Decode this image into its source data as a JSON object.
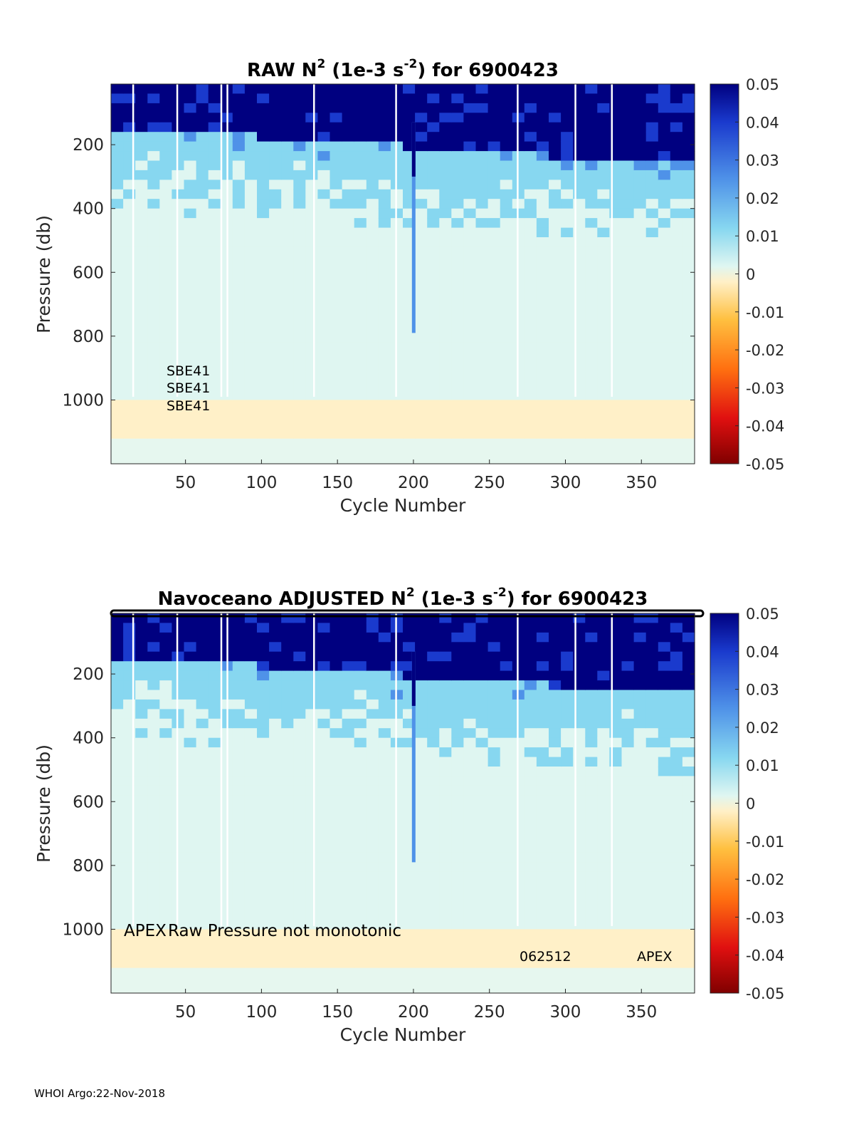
{
  "footer": "WHOI Argo:22-Nov-2018",
  "colorbar": {
    "ticks": [
      "0.05",
      "0.04",
      "0.03",
      "0.02",
      "0.01",
      "0",
      "-0.01",
      "-0.02",
      "-0.03",
      "-0.04",
      "-0.05"
    ],
    "values": [
      0.05,
      0.04,
      0.03,
      0.02,
      0.01,
      0,
      -0.01,
      -0.02,
      -0.03,
      -0.04,
      -0.05
    ],
    "colors": [
      "#000080",
      "#1a3acd",
      "#4f92e8",
      "#87d7f0",
      "#dff6f1",
      "#fff0c8",
      "#ffc040",
      "#ff7010",
      "#e01010",
      "#800000"
    ]
  },
  "chart_data": [
    {
      "type": "heatmap",
      "title_prefix": "RAW N",
      "title_sup1": "2",
      "title_mid": " (1e-3 s",
      "title_sup2": "-2",
      "title_suffix": ") for 6900423",
      "xlabel": "Cycle Number",
      "ylabel": "Pressure (db)",
      "xlim": [
        1,
        385
      ],
      "ylim": [
        10,
        1200
      ],
      "y_reversed": true,
      "xticks": [
        50,
        100,
        150,
        200,
        250,
        300,
        350
      ],
      "yticks": [
        200,
        400,
        600,
        800,
        1000
      ],
      "clim": [
        -0.05,
        0.05
      ],
      "annotations": [
        "SBE41",
        "SBE41",
        "SBE41"
      ]
    },
    {
      "type": "heatmap",
      "title_prefix": "Navoceano  ADJUSTED N",
      "title_sup1": "2",
      "title_mid": " (1e-3 s",
      "title_sup2": "-2",
      "title_suffix": ") for 6900423",
      "xlabel": "Cycle Number",
      "ylabel": "Pressure (db)",
      "xlim": [
        1,
        385
      ],
      "ylim": [
        10,
        1200
      ],
      "y_reversed": true,
      "xticks": [
        50,
        100,
        150,
        200,
        250,
        300,
        350
      ],
      "yticks": [
        200,
        400,
        600,
        800,
        1000
      ],
      "clim": [
        -0.05,
        0.05
      ],
      "annotations": [
        "APEX",
        "Raw Pressure not monotonic",
        "062512",
        "APEX"
      ]
    }
  ]
}
